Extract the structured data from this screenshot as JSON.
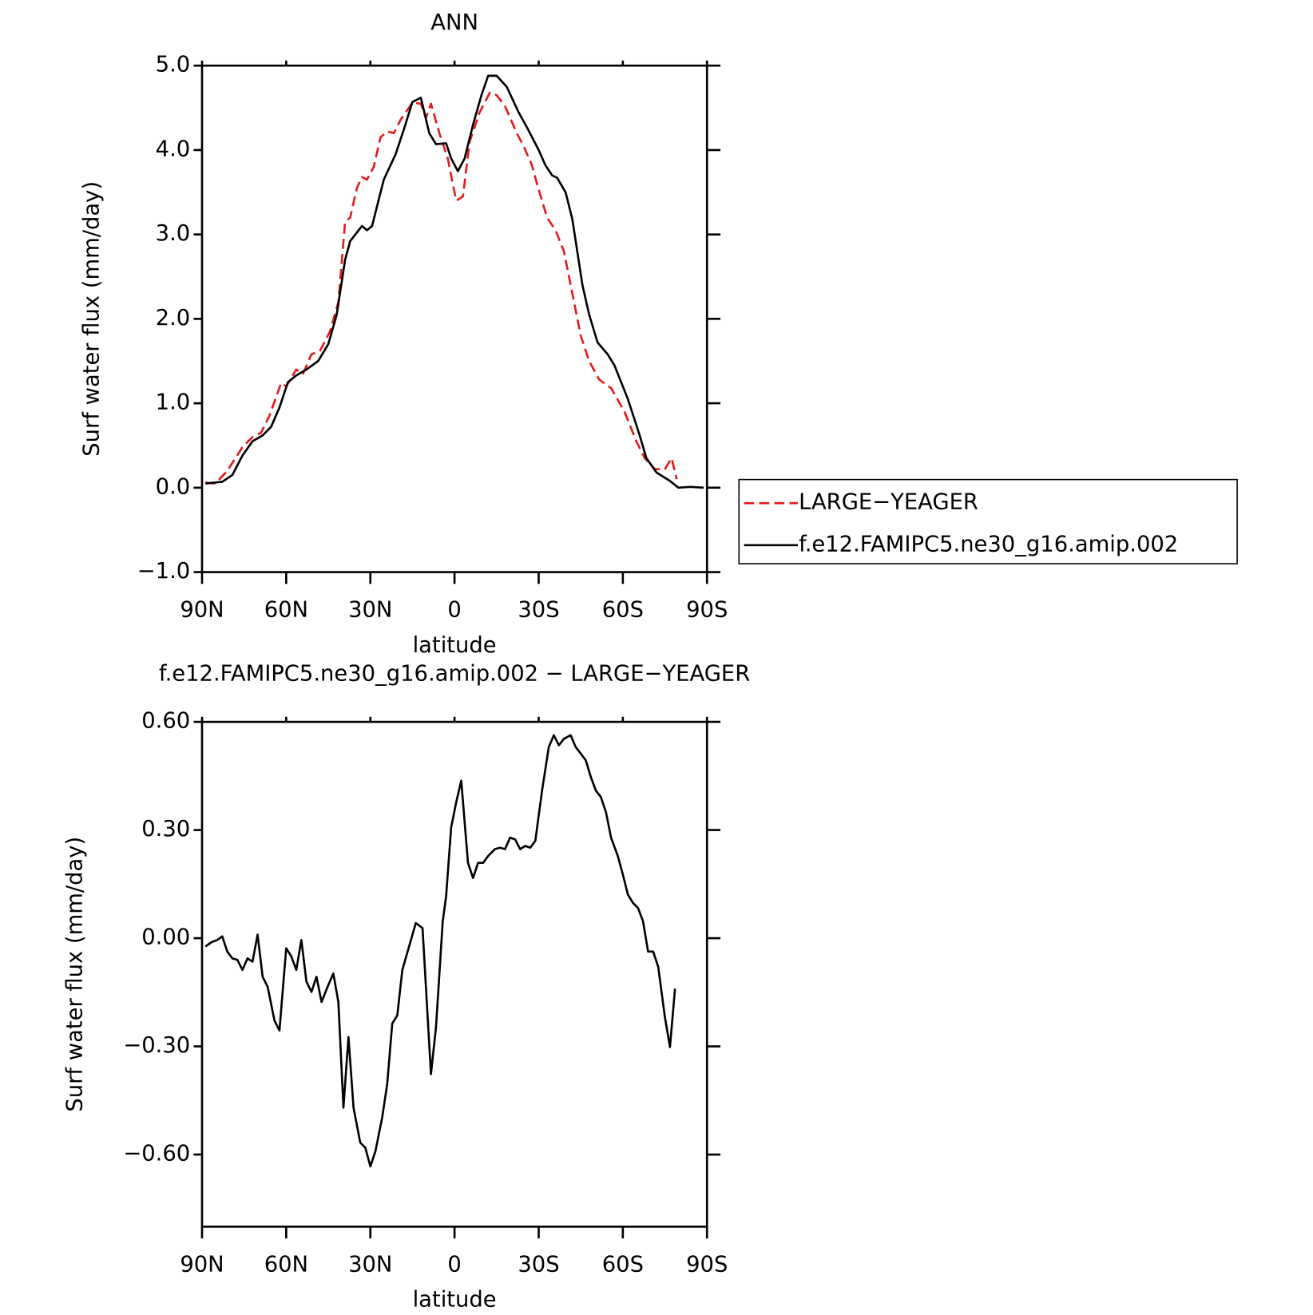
{
  "chart_data": [
    {
      "type": "line",
      "title": "ANN",
      "x_label": "latitude",
      "y_label": "Surf water flux (mm/day)",
      "xlim": [
        90,
        -90
      ],
      "xticks": [
        {
          "value": 90,
          "label": "90N"
        },
        {
          "value": 60,
          "label": "60N"
        },
        {
          "value": 30,
          "label": "30N"
        },
        0,
        {
          "value": -30,
          "label": "30S"
        },
        {
          "value": -60,
          "label": "60S"
        },
        {
          "value": -90,
          "label": "90S"
        }
      ],
      "ylim": [
        -1,
        5
      ],
      "yticks": [
        {
          "value": -1,
          "label": "−1.0"
        },
        {
          "value": 0,
          "label": "0.0"
        },
        {
          "value": 1,
          "label": "1.0"
        },
        {
          "value": 2,
          "label": "2.0"
        },
        {
          "value": 3,
          "label": "3.0"
        },
        {
          "value": 4,
          "label": "4.0"
        },
        {
          "value": 5,
          "label": "5.0"
        }
      ],
      "legend": "right",
      "series": [
        {
          "name": "LARGE−YEAGER",
          "color": "#e41a1c",
          "dashed": true,
          "x": [
            88.8,
            85.2,
            81,
            75.6,
            72,
            69,
            66,
            61.8,
            60,
            56.4,
            54,
            51,
            48,
            44.4,
            41.4,
            39,
            37.2,
            34.8,
            33,
            31.2,
            28.8,
            26.4,
            24,
            21.6,
            19.2,
            15,
            12,
            10.2,
            8.4,
            5.4,
            2.4,
            -0.6,
            -3,
            -5.4,
            -9,
            -12.6,
            -15,
            -18,
            -22.2,
            -24.6,
            -27.6,
            -29.4,
            -33,
            -36,
            -39,
            -42,
            -45,
            -48,
            -51.6,
            -55.8,
            -60.6,
            -64.8,
            -67.8,
            -71.4,
            -75,
            -77.4,
            -79.2
          ],
          "values": [
            0.06,
            0.05,
            0.2,
            0.48,
            0.6,
            0.65,
            0.85,
            1.24,
            1.2,
            1.4,
            1.35,
            1.58,
            1.62,
            1.85,
            2.2,
            3.15,
            3.2,
            3.55,
            3.68,
            3.65,
            3.8,
            4.15,
            4.22,
            4.2,
            4.36,
            4.56,
            4.55,
            4.38,
            4.55,
            4.2,
            3.9,
            3.4,
            3.45,
            4.1,
            4.45,
            4.68,
            4.65,
            4.52,
            4.2,
            4.05,
            3.82,
            3.6,
            3.2,
            3.05,
            2.8,
            2.3,
            1.8,
            1.5,
            1.28,
            1.18,
            0.9,
            0.55,
            0.35,
            0.22,
            0.22,
            0.35,
            0.1
          ]
        },
        {
          "name": "f.e12.FAMIPC5.ne30_g16.amip.002",
          "color": "#000000",
          "dashed": false,
          "x": [
            88.8,
            82.8,
            79.2,
            75.6,
            72,
            68.4,
            65.4,
            62.4,
            59.4,
            56.4,
            52.8,
            48.6,
            45,
            42,
            39,
            37.2,
            33,
            31.2,
            29.4,
            25.2,
            21,
            18,
            15,
            12,
            9,
            6.6,
            3,
            1.2,
            -1.2,
            -3.6,
            -6.6,
            -9.6,
            -12,
            -15,
            -18.6,
            -22.8,
            -25.8,
            -30,
            -32.4,
            -34.8,
            -36.6,
            -39.6,
            -42,
            -45.6,
            -48,
            -51,
            -54.6,
            -57,
            -61.8,
            -66,
            -68.4,
            -72,
            -76.8,
            -79.8,
            -84,
            -88.8
          ],
          "values": [
            0.05,
            0.07,
            0.15,
            0.38,
            0.55,
            0.62,
            0.72,
            0.95,
            1.25,
            1.33,
            1.4,
            1.5,
            1.7,
            2.05,
            2.7,
            2.92,
            3.1,
            3.05,
            3.1,
            3.65,
            3.95,
            4.25,
            4.57,
            4.62,
            4.2,
            4.07,
            4.08,
            3.9,
            3.75,
            3.9,
            4.3,
            4.65,
            4.88,
            4.88,
            4.75,
            4.45,
            4.27,
            4.0,
            3.82,
            3.7,
            3.67,
            3.5,
            3.18,
            2.4,
            2.05,
            1.72,
            1.58,
            1.45,
            1.05,
            0.62,
            0.35,
            0.18,
            0.08,
            0.0,
            0.01,
            0.0
          ]
        }
      ]
    },
    {
      "type": "line",
      "title": "f.e12.FAMIPC5.ne30_g16.amip.002 − LARGE−YEAGER",
      "x_label": "latitude",
      "y_label": "Surf water flux (mm/day)",
      "xlim": [
        90,
        -90
      ],
      "xticks": [
        {
          "value": 90,
          "label": "90N"
        },
        {
          "value": 60,
          "label": "60N"
        },
        {
          "value": 30,
          "label": "30N"
        },
        0,
        {
          "value": -30,
          "label": "30S"
        },
        {
          "value": -60,
          "label": "60S"
        },
        {
          "value": -90,
          "label": "90S"
        }
      ],
      "ylim": [
        -0.8,
        0.6
      ],
      "yticks": [
        {
          "value": -0.6,
          "label": "−0.60"
        },
        {
          "value": -0.3,
          "label": "−0.30"
        },
        {
          "value": 0,
          "label": "0.00"
        },
        {
          "value": 0.3,
          "label": "0.30"
        },
        {
          "value": 0.6,
          "label": "0.60"
        }
      ],
      "color": "#000000",
      "x": [
        88.8,
        86.4,
        84.6,
        82.8,
        81,
        79.2,
        77.4,
        75.6,
        73.8,
        72,
        70.2,
        68.4,
        66.6,
        64.2,
        62.4,
        60,
        58.2,
        56.4,
        54.6,
        52.8,
        51,
        49.2,
        47.4,
        45,
        43.2,
        41.4,
        39.6,
        37.8,
        36,
        33.6,
        31.8,
        30,
        28.2,
        25.8,
        24,
        22.2,
        20.4,
        18.6,
        16.2,
        13.8,
        11.4,
        8.4,
        6.6,
        4.2,
        3,
        1.2,
        -0.6,
        -2.4,
        -4.8,
        -6.6,
        -8.4,
        -10.2,
        -12,
        -14.4,
        -16.2,
        -18,
        -19.8,
        -21.6,
        -23.4,
        -25.2,
        -27,
        -28.8,
        -31.2,
        -33.6,
        -35.4,
        -37.2,
        -39,
        -41.4,
        -43.2,
        -45,
        -46.8,
        -48.6,
        -50.4,
        -52.2,
        -54,
        -55.8,
        -58.2,
        -60,
        -61.8,
        -63.6,
        -65.4,
        -67.2,
        -69,
        -70.8,
        -72.6,
        -75,
        -76.8,
        -78.6
      ],
      "values": [
        -0.023,
        -0.01,
        -0.005,
        0.005,
        -0.037,
        -0.056,
        -0.06,
        -0.088,
        -0.056,
        -0.065,
        0.01,
        -0.107,
        -0.135,
        -0.228,
        -0.256,
        -0.028,
        -0.05,
        -0.088,
        -0.005,
        -0.12,
        -0.149,
        -0.107,
        -0.177,
        -0.13,
        -0.098,
        -0.177,
        -0.47,
        -0.274,
        -0.47,
        -0.567,
        -0.581,
        -0.633,
        -0.591,
        -0.498,
        -0.405,
        -0.237,
        -0.214,
        -0.088,
        -0.023,
        0.042,
        0.028,
        -0.377,
        -0.247,
        0.047,
        0.116,
        0.307,
        0.377,
        0.437,
        0.209,
        0.167,
        0.209,
        0.209,
        0.228,
        0.247,
        0.251,
        0.247,
        0.279,
        0.274,
        0.247,
        0.256,
        0.251,
        0.27,
        0.409,
        0.53,
        0.563,
        0.535,
        0.553,
        0.563,
        0.53,
        0.512,
        0.493,
        0.447,
        0.409,
        0.391,
        0.349,
        0.279,
        0.228,
        0.177,
        0.121,
        0.098,
        0.084,
        0.047,
        -0.037,
        -0.037,
        -0.079,
        -0.219,
        -0.302,
        -0.14
      ]
    }
  ]
}
